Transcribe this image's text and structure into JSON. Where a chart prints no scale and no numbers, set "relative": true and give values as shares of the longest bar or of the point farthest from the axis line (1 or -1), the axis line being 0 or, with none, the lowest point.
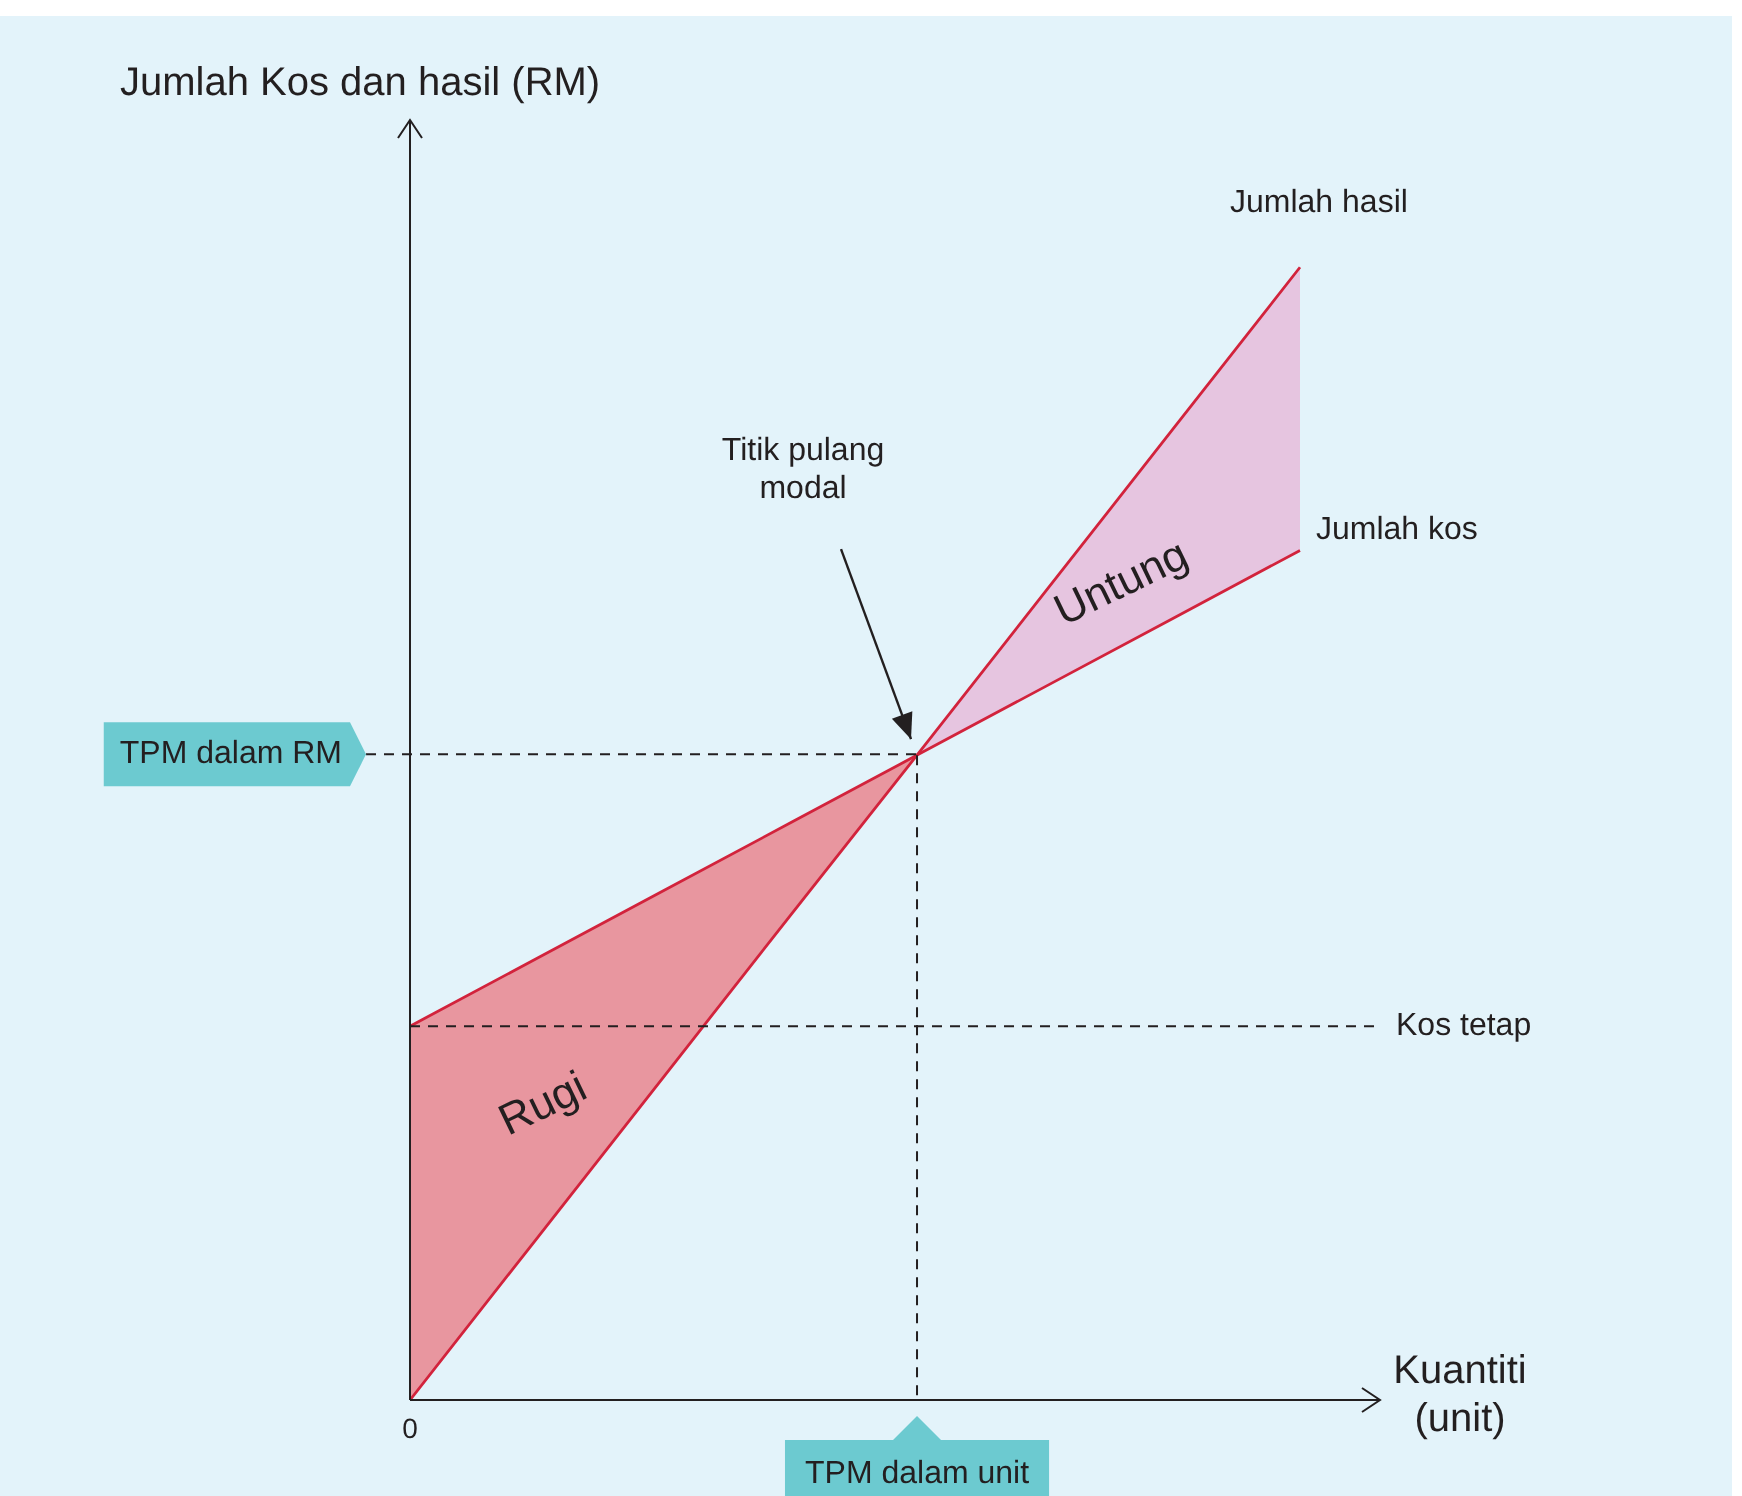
{
  "chart_data": {
    "type": "line",
    "relative": true,
    "xlabel": "Kuantiti\n(unit)",
    "ylabel": "Jumlah Kos dan hasil (RM)",
    "categories": [
      null,
      null,
      null,
      null,
      null,
      null,
      null,
      null
    ],
    "series": [
      {
        "name": "Jumlah hasil",
        "color": "#d2233c",
        "values": [
          0,
          0.143,
          0.286,
          0.429,
          0.571,
          0.714,
          0.857,
          1
        ]
      },
      {
        "name": "Jumlah kos",
        "color": "#d2233c",
        "values": [
          0.33,
          0.39,
          0.45,
          0.51,
          0.57,
          0.63,
          0.69,
          0.75
        ]
      }
    ],
    "ref_lines": [
      {
        "axis": "y",
        "value": 0.33,
        "label": "Kos tetap",
        "line_style": "dashed"
      },
      {
        "axis": "y",
        "value": 0.57,
        "label": "TPM dalam RM",
        "line_style": "dashed"
      },
      {
        "axis": "x",
        "label": "TPM dalam unit",
        "line_style": "dashed"
      }
    ],
    "annotations": [
      "Titik pulang modal",
      "0",
      "Rugi",
      "Untung"
    ],
    "marker": "none",
    "line_style": "solid",
    "legend": false
  }
}
